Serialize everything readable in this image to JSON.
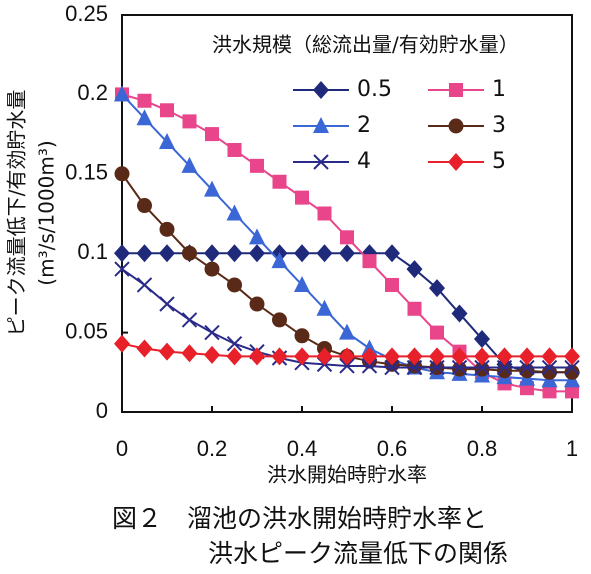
{
  "chart_data": {
    "type": "line",
    "y_label": "ピーク流量低下/有効貯水量",
    "y_label_unit": "(m³/s/1000m³)",
    "x_label": "洪水開始時貯水率",
    "legend_title": "洪水規模（総流出量/有効貯水量）",
    "caption": [
      "図２　溜池の洪水開始時貯水率と",
      "洪水ピーク流量低下の関係"
    ],
    "xlim": [
      0,
      1
    ],
    "xticks": [
      0,
      0.2,
      0.4,
      0.6,
      0.8,
      1
    ],
    "ylim": [
      0,
      0.25
    ],
    "yticks": [
      0,
      0.05,
      0.1,
      0.15,
      0.2,
      0.25
    ],
    "x": [
      0,
      0.05,
      0.1,
      0.15,
      0.2,
      0.25,
      0.3,
      0.35,
      0.4,
      0.45,
      0.5,
      0.55,
      0.6,
      0.65,
      0.7,
      0.75,
      0.8,
      0.85,
      0.9,
      0.95,
      1
    ],
    "series": [
      {
        "name": "0.5",
        "color": "#1f2a7a",
        "marker": "diamond",
        "values": [
          0.1,
          0.1,
          0.1,
          0.1,
          0.1,
          0.1,
          0.1,
          0.1,
          0.1,
          0.1,
          0.1,
          0.1,
          0.1,
          0.09,
          0.078,
          0.062,
          0.046,
          0.03,
          0.025,
          0.025,
          0.025
        ]
      },
      {
        "name": "1",
        "color": "#e8458a",
        "marker": "square",
        "values": [
          0.2,
          0.196,
          0.19,
          0.183,
          0.175,
          0.165,
          0.155,
          0.145,
          0.135,
          0.125,
          0.11,
          0.095,
          0.08,
          0.065,
          0.05,
          0.038,
          0.025,
          0.018,
          0.015,
          0.013,
          0.013
        ]
      },
      {
        "name": "2",
        "color": "#3a66d6",
        "marker": "triangle",
        "values": [
          0.2,
          0.185,
          0.17,
          0.155,
          0.14,
          0.125,
          0.11,
          0.095,
          0.08,
          0.065,
          0.05,
          0.04,
          0.033,
          0.028,
          0.025,
          0.024,
          0.023,
          0.022,
          0.021,
          0.02,
          0.02
        ]
      },
      {
        "name": "3",
        "color": "#5a2a18",
        "marker": "circle",
        "values": [
          0.15,
          0.13,
          0.115,
          0.1,
          0.09,
          0.08,
          0.068,
          0.058,
          0.048,
          0.04,
          0.035,
          0.032,
          0.03,
          0.029,
          0.028,
          0.027,
          0.027,
          0.026,
          0.026,
          0.025,
          0.025
        ]
      },
      {
        "name": "4",
        "color": "#2a2a8a",
        "marker": "x",
        "values": [
          0.09,
          0.08,
          0.068,
          0.058,
          0.05,
          0.043,
          0.038,
          0.034,
          0.031,
          0.03,
          0.029,
          0.029,
          0.028,
          0.028,
          0.028,
          0.028,
          0.028,
          0.028,
          0.028,
          0.028,
          0.028
        ]
      },
      {
        "name": "5",
        "color": "#e8202a",
        "marker": "diamond",
        "values": [
          0.043,
          0.04,
          0.038,
          0.037,
          0.036,
          0.035,
          0.035,
          0.035,
          0.035,
          0.035,
          0.035,
          0.035,
          0.035,
          0.035,
          0.035,
          0.035,
          0.035,
          0.035,
          0.035,
          0.035,
          0.035
        ]
      }
    ]
  }
}
